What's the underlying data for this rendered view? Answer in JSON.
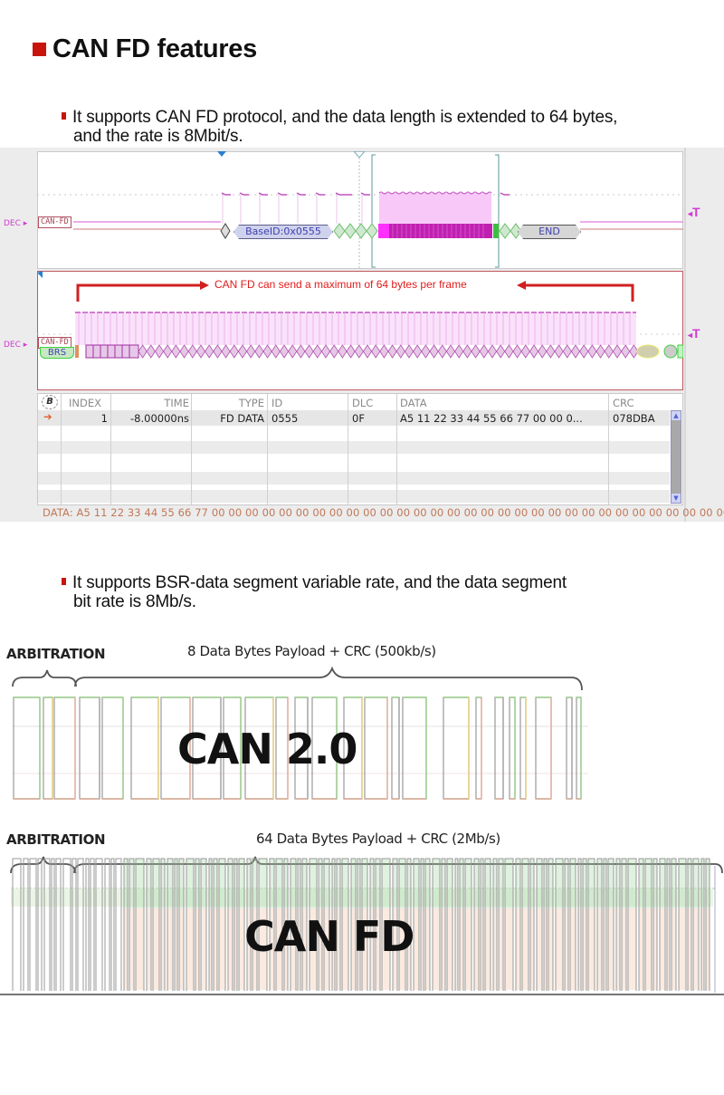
{
  "heading": {
    "title": "CAN FD features",
    "bullet_color": "#c8140c"
  },
  "bullets": [
    {
      "line1": "It supports CAN FD protocol, and the data length is extended to 64 bytes,",
      "line2": "and the rate is 8Mbit/s."
    },
    {
      "line1": "It supports BSR-data segment variable rate, and the data segment",
      "line2": "bit rate is 8Mb/s."
    }
  ],
  "analyzer": {
    "panel1": {
      "channel_label": "DEC",
      "protocol_tag": "CAN-FD",
      "trigger_mark": "T",
      "fields": {
        "base_id": "BaseID:0x0555",
        "end": "END"
      }
    },
    "panel2": {
      "channel_label": "DEC",
      "protocol_tag": "CAN-FD",
      "trigger_mark": "T",
      "brs_label": "BRS",
      "annotation": "CAN FD can send a maximum of 64 bytes per frame"
    },
    "table": {
      "bus_icon_label": "B",
      "columns": [
        "INDEX",
        "TIME",
        "TYPE",
        "ID",
        "DLC",
        "DATA",
        "CRC"
      ],
      "rows": [
        {
          "index": "1",
          "time": "-8.00000ns",
          "type": "FD DATA",
          "id": "0555",
          "dlc": "0F",
          "data": "A5 11 22 33 44 55 66 77 00 00 0...",
          "crc": "078DBA"
        }
      ],
      "data_line": "DATA: A5 11 22 33 44 55 66 77 00 00 00 00 00 00 00 00 00 00 00 00 00 00 00 00 00 00 00 00 00 00 00 00 00 00 00 00 00 00 00..."
    }
  },
  "comparison": {
    "can20": {
      "arbitration_label": "ARBITRATION",
      "payload_label": "8 Data Bytes Payload + CRC (500kb/s)",
      "title": "CAN 2.0"
    },
    "canfd": {
      "arbitration_label": "ARBITRATION",
      "payload_label": "64 Data Bytes Payload + CRC (2Mb/s)",
      "title": "CAN FD"
    }
  }
}
